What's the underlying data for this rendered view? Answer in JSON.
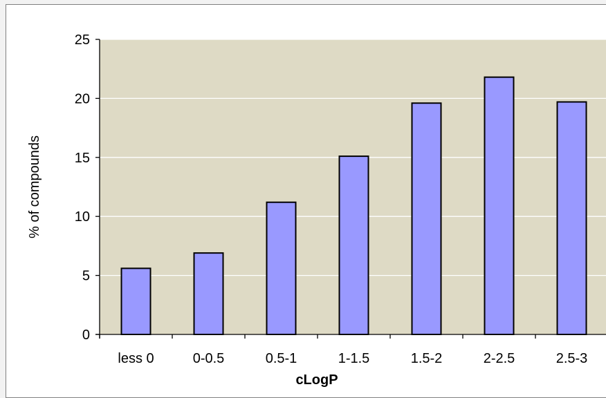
{
  "chart_data": {
    "type": "bar",
    "title": "",
    "xlabel": "cLogP",
    "ylabel": "% of compounds",
    "categories": [
      "less 0",
      "0-0.5",
      "0.5-1",
      "1-1.5",
      "1.5-2",
      "2-2.5",
      "2.5-3"
    ],
    "values": [
      5.6,
      6.9,
      11.2,
      15.1,
      19.6,
      21.8,
      19.7
    ],
    "ylim": [
      0,
      25
    ],
    "yticks": [
      0,
      5,
      10,
      15,
      20,
      25
    ],
    "grid": true,
    "legend": "none",
    "colors": {
      "plot_background": "#dedac5",
      "bar_fill": "#9999ff",
      "bar_stroke": "#000000",
      "gridline": "#ffffff",
      "axis": "#000000"
    }
  }
}
